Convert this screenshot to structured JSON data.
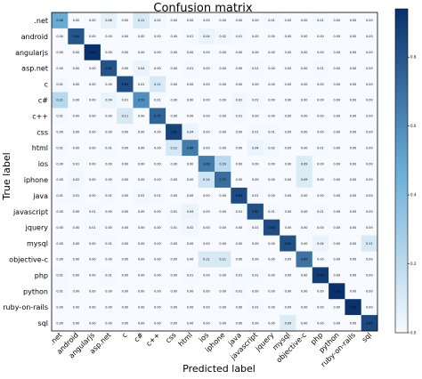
{
  "chart_data": {
    "type": "heatmap",
    "title": "Confusion matrix",
    "xlabel": "Predicted label",
    "ylabel": "True label",
    "labels": [
      ".net",
      "android",
      "angularjs",
      "asp.net",
      "c",
      "c#",
      "c++",
      "css",
      "html",
      "ios",
      "iphone",
      "java",
      "javascript",
      "jquery",
      "mysql",
      "objective-c",
      "php",
      "python",
      "ruby-on-rails",
      "sql"
    ],
    "colorbar_ticks": [
      "0.0",
      "0.2",
      "0.4",
      "0.6",
      "0.8"
    ],
    "colormap": {
      "low": "#f7fbff",
      "mid": "#6baed6",
      "high": "#08306b"
    },
    "matrix": [
      [
        0.48,
        0.0,
        0.0,
        0.06,
        0.0,
        0.11,
        0.02,
        0.0,
        0.0,
        0.0,
        0.0,
        0.0,
        0.0,
        0.01,
        0.0,
        0.0,
        0.01,
        0.0,
        0.0,
        0.0
      ],
      [
        0.0,
        0.8,
        0.0,
        0.0,
        0.0,
        0.0,
        0.0,
        0.0,
        0.01,
        0.04,
        0.02,
        0.01,
        0.0,
        0.0,
        0.0,
        0.0,
        0.0,
        0.0,
        0.0,
        0.0
      ],
      [
        0.0,
        0.0,
        0.94,
        0.0,
        0.0,
        0.0,
        0.0,
        0.0,
        0.0,
        0.0,
        0.0,
        0.0,
        0.0,
        0.0,
        0.0,
        0.0,
        0.0,
        0.0,
        0.0,
        0.0
      ],
      [
        0.0,
        0.0,
        0.0,
        0.81,
        0.0,
        0.04,
        0.0,
        0.0,
        0.01,
        0.0,
        0.0,
        0.0,
        0.01,
        0.0,
        0.0,
        0.0,
        0.01,
        0.0,
        0.0,
        0.0
      ],
      [
        0.01,
        0.0,
        0.0,
        0.0,
        0.83,
        0.01,
        0.11,
        0.0,
        0.0,
        0.0,
        0.0,
        0.0,
        0.0,
        0.0,
        0.0,
        0.0,
        0.0,
        0.0,
        0.0,
        0.0
      ],
      [
        0.21,
        0.0,
        0.0,
        0.04,
        0.01,
        0.59,
        0.01,
        0.0,
        0.0,
        0.0,
        0.0,
        0.02,
        0.01,
        0.0,
        0.0,
        0.0,
        0.0,
        0.0,
        0.0,
        0.0
      ],
      [
        0.01,
        0.0,
        0.0,
        0.0,
        0.11,
        0.0,
        0.75,
        0.0,
        0.0,
        0.0,
        0.0,
        0.01,
        0.0,
        0.0,
        0.0,
        0.0,
        0.0,
        0.0,
        0.0,
        0.0
      ],
      [
        0.0,
        0.0,
        0.0,
        0.0,
        0.0,
        0.0,
        0.0,
        0.87,
        0.04,
        0.0,
        0.0,
        0.0,
        0.01,
        0.01,
        0.0,
        0.0,
        0.0,
        0.0,
        0.0,
        0.0
      ],
      [
        0.01,
        0.0,
        0.0,
        0.01,
        0.0,
        0.0,
        0.0,
        0.12,
        0.66,
        0.0,
        0.0,
        0.0,
        0.04,
        0.02,
        0.0,
        0.0,
        0.01,
        0.0,
        0.0,
        0.0
      ],
      [
        0.0,
        0.01,
        0.0,
        0.0,
        0.0,
        0.0,
        0.0,
        0.0,
        0.0,
        0.66,
        0.2,
        0.0,
        0.0,
        0.0,
        0.0,
        0.09,
        0.0,
        0.0,
        0.0,
        0.0
      ],
      [
        0.0,
        0.02,
        0.0,
        0.0,
        0.0,
        0.0,
        0.0,
        0.0,
        0.0,
        0.14,
        0.71,
        0.0,
        0.0,
        0.0,
        0.0,
        0.09,
        0.0,
        0.0,
        0.0,
        0.0
      ],
      [
        0.01,
        0.01,
        0.0,
        0.01,
        0.0,
        0.02,
        0.01,
        0.0,
        0.0,
        0.0,
        0.0,
        0.84,
        0.01,
        0.0,
        0.0,
        0.0,
        0.0,
        0.0,
        0.0,
        0.0
      ],
      [
        0.0,
        0.0,
        0.01,
        0.0,
        0.0,
        0.0,
        0.0,
        0.01,
        0.04,
        0.0,
        0.0,
        0.01,
        0.82,
        0.01,
        0.0,
        0.0,
        0.01,
        0.0,
        0.0,
        0.0
      ],
      [
        0.0,
        0.0,
        0.01,
        0.0,
        0.0,
        0.0,
        0.0,
        0.01,
        0.02,
        0.0,
        0.0,
        0.0,
        0.01,
        0.84,
        0.0,
        0.0,
        0.0,
        0.0,
        0.0,
        0.0
      ],
      [
        0.0,
        0.0,
        0.0,
        0.01,
        0.0,
        0.0,
        0.0,
        0.0,
        0.0,
        0.0,
        0.0,
        0.0,
        0.0,
        0.0,
        0.82,
        0.0,
        0.04,
        0.0,
        0.0,
        0.11
      ],
      [
        0.0,
        0.0,
        0.0,
        0.0,
        0.0,
        0.0,
        0.0,
        0.0,
        0.0,
        0.11,
        0.11,
        0.0,
        0.0,
        0.0,
        0.0,
        0.69,
        0.0,
        0.0,
        0.0,
        0.0
      ],
      [
        0.01,
        0.0,
        0.0,
        0.01,
        0.0,
        0.0,
        0.0,
        0.0,
        0.01,
        0.0,
        0.0,
        0.01,
        0.01,
        0.0,
        0.0,
        0.0,
        0.9,
        0.0,
        0.0,
        0.0
      ],
      [
        0.01,
        0.0,
        0.0,
        0.0,
        0.0,
        0.0,
        0.0,
        0.0,
        0.0,
        0.0,
        0.0,
        0.01,
        0.0,
        0.0,
        0.0,
        0.0,
        0.0,
        0.93,
        0.0,
        0.0
      ],
      [
        0.0,
        0.0,
        0.0,
        0.0,
        0.0,
        0.0,
        0.0,
        0.0,
        0.0,
        0.0,
        0.0,
        0.0,
        0.01,
        0.0,
        0.0,
        0.0,
        0.0,
        0.0,
        0.93,
        0.0
      ],
      [
        0.0,
        0.0,
        0.0,
        0.0,
        0.0,
        0.0,
        0.0,
        0.0,
        0.0,
        0.0,
        0.0,
        0.0,
        0.0,
        0.0,
        0.09,
        0.0,
        0.0,
        0.0,
        0.0,
        0.85
      ]
    ]
  }
}
